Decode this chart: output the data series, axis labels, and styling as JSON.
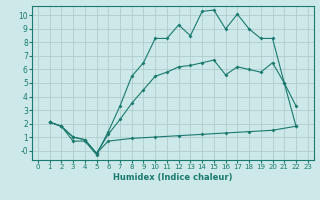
{
  "xlabel": "Humidex (Indice chaleur)",
  "xlim": [
    -0.5,
    23.5
  ],
  "ylim": [
    -0.7,
    10.7
  ],
  "yticks": [
    0,
    1,
    2,
    3,
    4,
    5,
    6,
    7,
    8,
    9,
    10
  ],
  "ytick_labels": [
    "-0",
    "1",
    "2",
    "3",
    "4",
    "5",
    "6",
    "7",
    "8",
    "9",
    "10"
  ],
  "xticks": [
    0,
    1,
    2,
    3,
    4,
    5,
    6,
    7,
    8,
    9,
    10,
    11,
    12,
    13,
    14,
    15,
    16,
    17,
    18,
    19,
    20,
    21,
    22,
    23
  ],
  "bg_color": "#cce8e8",
  "line_color": "#1a7a6e",
  "grid_color": "#b0cccc",
  "line1_x": [
    1,
    2,
    3,
    4,
    5,
    6,
    7,
    8,
    9,
    10,
    11,
    12,
    13,
    14,
    15,
    16,
    17,
    18,
    19,
    20,
    21,
    22
  ],
  "line1_y": [
    2.1,
    1.8,
    0.7,
    0.7,
    -0.3,
    1.4,
    3.3,
    5.5,
    6.5,
    8.3,
    8.3,
    9.3,
    8.5,
    10.3,
    10.4,
    9.0,
    10.1,
    9.0,
    8.3,
    8.3,
    5.0,
    3.3
  ],
  "line2_x": [
    1,
    2,
    3,
    4,
    5,
    6,
    7,
    8,
    9,
    10,
    11,
    12,
    13,
    14,
    15,
    16,
    17,
    18,
    19,
    20,
    21,
    22
  ],
  "line2_y": [
    2.1,
    1.8,
    1.0,
    0.8,
    -0.2,
    1.2,
    2.3,
    3.5,
    4.5,
    5.5,
    5.8,
    6.2,
    6.3,
    6.5,
    6.7,
    5.6,
    6.2,
    6.0,
    5.8,
    6.5,
    5.0,
    1.8
  ],
  "line3_x": [
    1,
    2,
    3,
    4,
    5,
    6,
    8,
    10,
    12,
    14,
    16,
    18,
    20,
    22
  ],
  "line3_y": [
    2.1,
    1.8,
    1.0,
    0.8,
    -0.2,
    0.7,
    0.9,
    1.0,
    1.1,
    1.2,
    1.3,
    1.4,
    1.5,
    1.8
  ]
}
